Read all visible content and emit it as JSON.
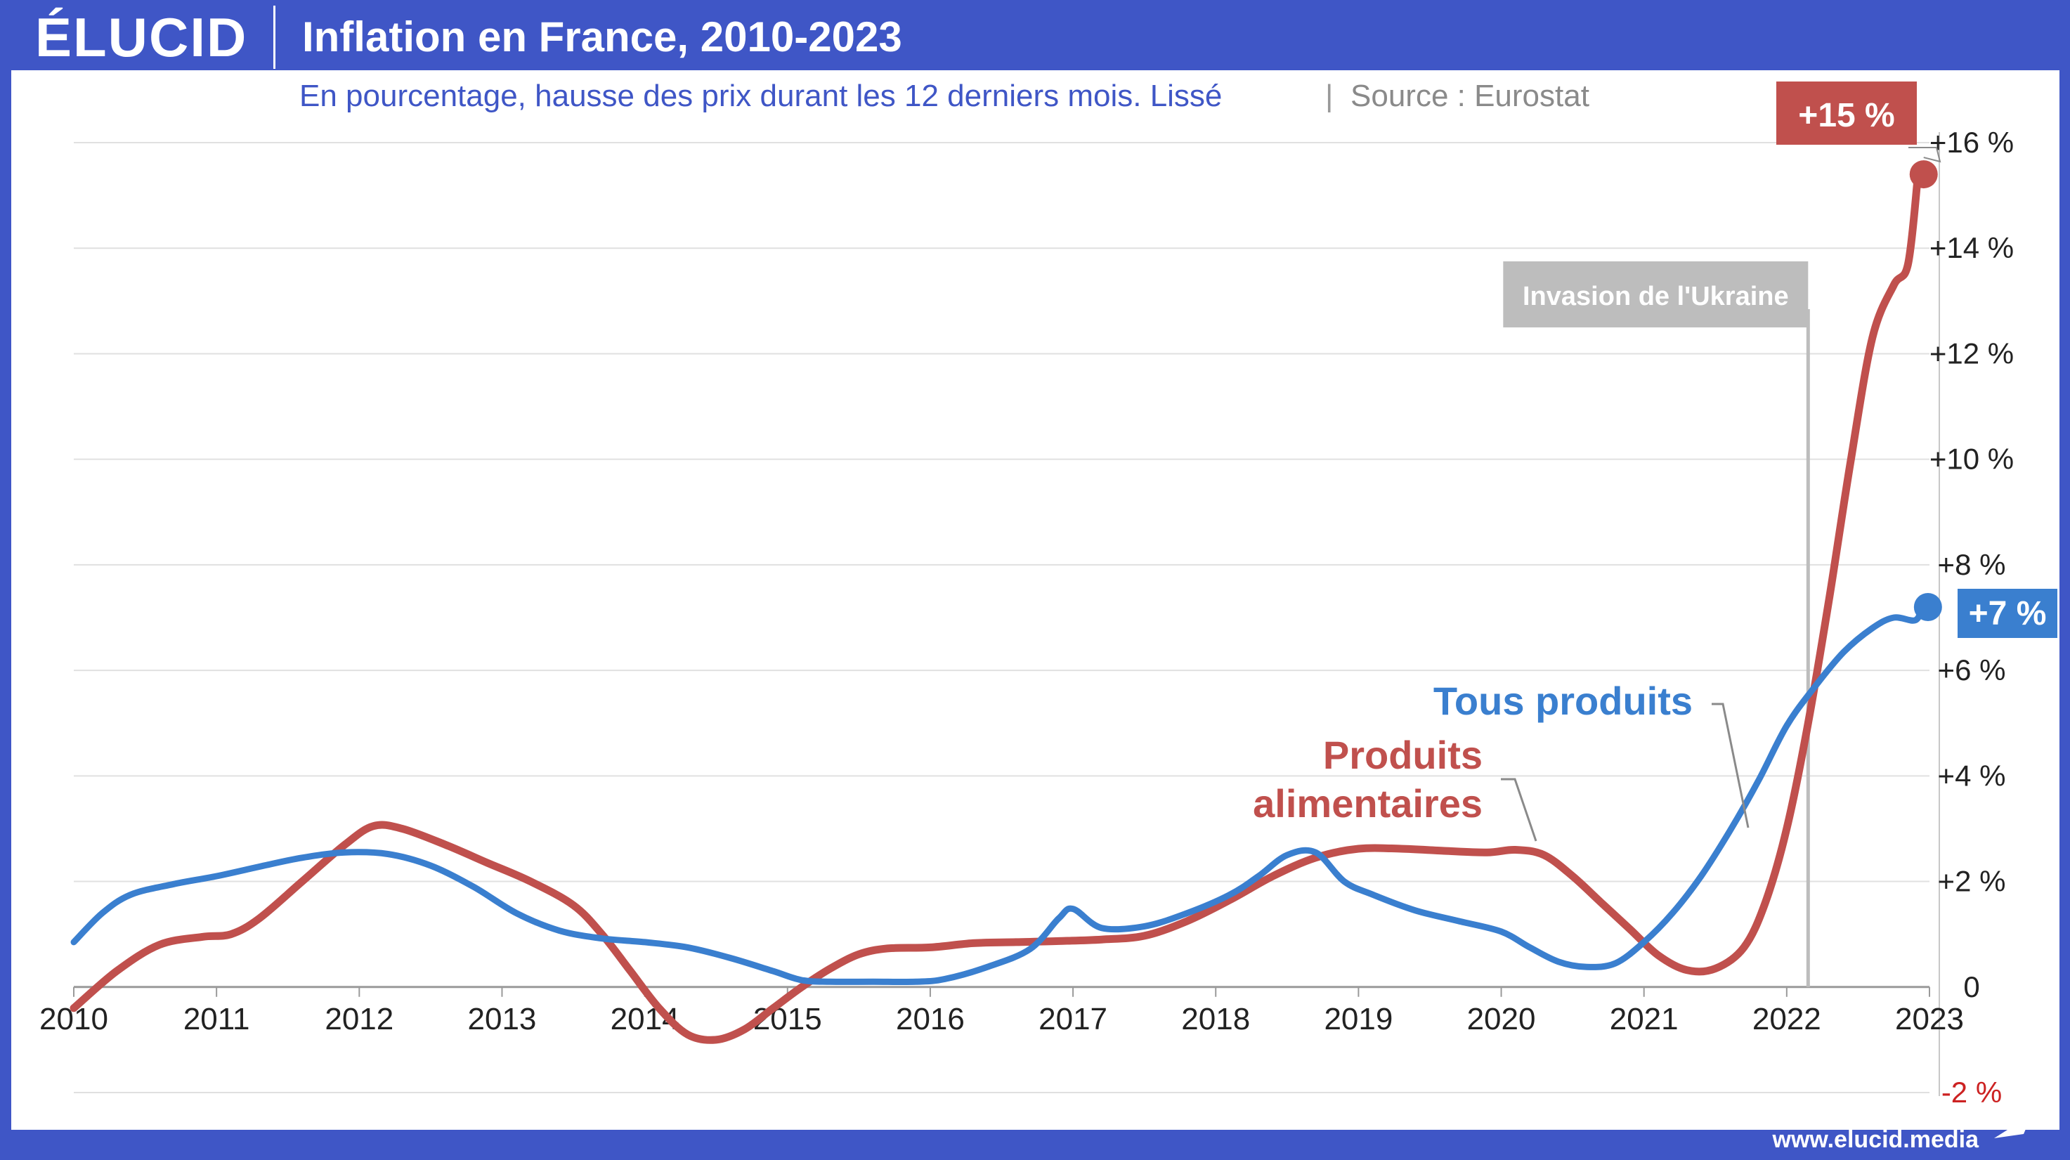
{
  "header": {
    "logo": "ÉLUCID",
    "title": "Inflation en France, 2010-2023"
  },
  "footer": {
    "url": "www.elucid.media"
  },
  "colors": {
    "brand_blue": "#3f56c6",
    "food_red": "#c0504d",
    "all_blue": "#3a7fcf",
    "grid": "#e0e0e0",
    "annotation_gray": "#bdbdbd",
    "negative_tick": "#cc2222"
  },
  "chart_data": {
    "type": "line",
    "subtitle": "En pourcentage, hausse des prix durant les 12 derniers mois. Lissé",
    "source": "Source : Eurostat",
    "xlim": [
      2010,
      2023
    ],
    "ylim": [
      -2,
      16
    ],
    "x_ticks": [
      "2010",
      "2011",
      "2012",
      "2013",
      "2014",
      "2015",
      "2016",
      "2017",
      "2018",
      "2019",
      "2020",
      "2021",
      "2022",
      "2023"
    ],
    "y_ticks": [
      {
        "value": 16,
        "label": "+16 %"
      },
      {
        "value": 14,
        "label": "+14 %"
      },
      {
        "value": 12,
        "label": "+12 %"
      },
      {
        "value": 10,
        "label": "+10 %"
      },
      {
        "value": 8,
        "label": "+8 %"
      },
      {
        "value": 6,
        "label": "+6 %"
      },
      {
        "value": 4,
        "label": "+4 %"
      },
      {
        "value": 2,
        "label": "+2 %"
      },
      {
        "value": 0,
        "label": "0"
      },
      {
        "value": -2,
        "label": "-2 %"
      }
    ],
    "grid": true,
    "series": [
      {
        "name": "Produits alimentaires",
        "label_lines": [
          "Produits",
          "alimentaires"
        ],
        "color": "#c0504d",
        "end_label": "+15 %",
        "end_value": 15.4,
        "points": [
          [
            2010.0,
            -0.4
          ],
          [
            2010.3,
            0.3
          ],
          [
            2010.6,
            0.8
          ],
          [
            2010.9,
            0.95
          ],
          [
            2011.1,
            1.0
          ],
          [
            2011.3,
            1.3
          ],
          [
            2011.6,
            2.0
          ],
          [
            2011.9,
            2.7
          ],
          [
            2012.1,
            3.05
          ],
          [
            2012.3,
            3.0
          ],
          [
            2012.6,
            2.7
          ],
          [
            2012.9,
            2.35
          ],
          [
            2013.2,
            2.0
          ],
          [
            2013.5,
            1.55
          ],
          [
            2013.7,
            1.0
          ],
          [
            2013.9,
            0.3
          ],
          [
            2014.1,
            -0.4
          ],
          [
            2014.3,
            -0.9
          ],
          [
            2014.5,
            -1.0
          ],
          [
            2014.7,
            -0.8
          ],
          [
            2014.9,
            -0.4
          ],
          [
            2015.1,
            0.0
          ],
          [
            2015.3,
            0.35
          ],
          [
            2015.5,
            0.62
          ],
          [
            2015.7,
            0.73
          ],
          [
            2016.0,
            0.75
          ],
          [
            2016.3,
            0.83
          ],
          [
            2016.6,
            0.85
          ],
          [
            2016.9,
            0.87
          ],
          [
            2017.2,
            0.9
          ],
          [
            2017.5,
            0.97
          ],
          [
            2017.8,
            1.25
          ],
          [
            2018.1,
            1.65
          ],
          [
            2018.4,
            2.1
          ],
          [
            2018.7,
            2.45
          ],
          [
            2019.0,
            2.62
          ],
          [
            2019.3,
            2.62
          ],
          [
            2019.6,
            2.58
          ],
          [
            2019.9,
            2.55
          ],
          [
            2020.1,
            2.6
          ],
          [
            2020.3,
            2.5
          ],
          [
            2020.5,
            2.1
          ],
          [
            2020.7,
            1.6
          ],
          [
            2020.9,
            1.1
          ],
          [
            2021.1,
            0.6
          ],
          [
            2021.3,
            0.32
          ],
          [
            2021.5,
            0.35
          ],
          [
            2021.7,
            0.75
          ],
          [
            2021.85,
            1.6
          ],
          [
            2022.0,
            3.0
          ],
          [
            2022.15,
            5.0
          ],
          [
            2022.3,
            7.4
          ],
          [
            2022.45,
            10.0
          ],
          [
            2022.6,
            12.3
          ],
          [
            2022.75,
            13.3
          ],
          [
            2022.85,
            13.7
          ],
          [
            2022.92,
            15.4
          ]
        ]
      },
      {
        "name": "Tous produits",
        "label_lines": [
          "Tous produits"
        ],
        "color": "#3a7fcf",
        "end_label": "+7 %",
        "end_value": 7.2,
        "points": [
          [
            2010.0,
            0.85
          ],
          [
            2010.2,
            1.4
          ],
          [
            2010.4,
            1.75
          ],
          [
            2010.7,
            1.95
          ],
          [
            2011.0,
            2.1
          ],
          [
            2011.3,
            2.28
          ],
          [
            2011.6,
            2.45
          ],
          [
            2011.9,
            2.55
          ],
          [
            2012.2,
            2.52
          ],
          [
            2012.5,
            2.3
          ],
          [
            2012.8,
            1.9
          ],
          [
            2013.1,
            1.4
          ],
          [
            2013.4,
            1.07
          ],
          [
            2013.7,
            0.92
          ],
          [
            2014.0,
            0.85
          ],
          [
            2014.3,
            0.75
          ],
          [
            2014.6,
            0.55
          ],
          [
            2014.9,
            0.3
          ],
          [
            2015.1,
            0.13
          ],
          [
            2015.3,
            0.1
          ],
          [
            2015.6,
            0.1
          ],
          [
            2015.9,
            0.1
          ],
          [
            2016.1,
            0.15
          ],
          [
            2016.4,
            0.38
          ],
          [
            2016.7,
            0.72
          ],
          [
            2016.9,
            1.3
          ],
          [
            2017.0,
            1.48
          ],
          [
            2017.2,
            1.12
          ],
          [
            2017.5,
            1.15
          ],
          [
            2017.8,
            1.4
          ],
          [
            2018.1,
            1.75
          ],
          [
            2018.3,
            2.1
          ],
          [
            2018.5,
            2.5
          ],
          [
            2018.7,
            2.55
          ],
          [
            2018.9,
            2.0
          ],
          [
            2019.1,
            1.75
          ],
          [
            2019.4,
            1.45
          ],
          [
            2019.7,
            1.25
          ],
          [
            2020.0,
            1.05
          ],
          [
            2020.2,
            0.75
          ],
          [
            2020.4,
            0.48
          ],
          [
            2020.6,
            0.38
          ],
          [
            2020.8,
            0.45
          ],
          [
            2021.0,
            0.85
          ],
          [
            2021.2,
            1.4
          ],
          [
            2021.4,
            2.1
          ],
          [
            2021.6,
            2.95
          ],
          [
            2021.8,
            3.9
          ],
          [
            2022.0,
            4.95
          ],
          [
            2022.2,
            5.7
          ],
          [
            2022.4,
            6.35
          ],
          [
            2022.6,
            6.8
          ],
          [
            2022.75,
            7.0
          ],
          [
            2022.9,
            6.95
          ],
          [
            2022.95,
            7.2
          ]
        ]
      }
    ],
    "annotations": [
      {
        "text": "Invasion de l'Ukraine",
        "x": 2022.15
      }
    ]
  }
}
